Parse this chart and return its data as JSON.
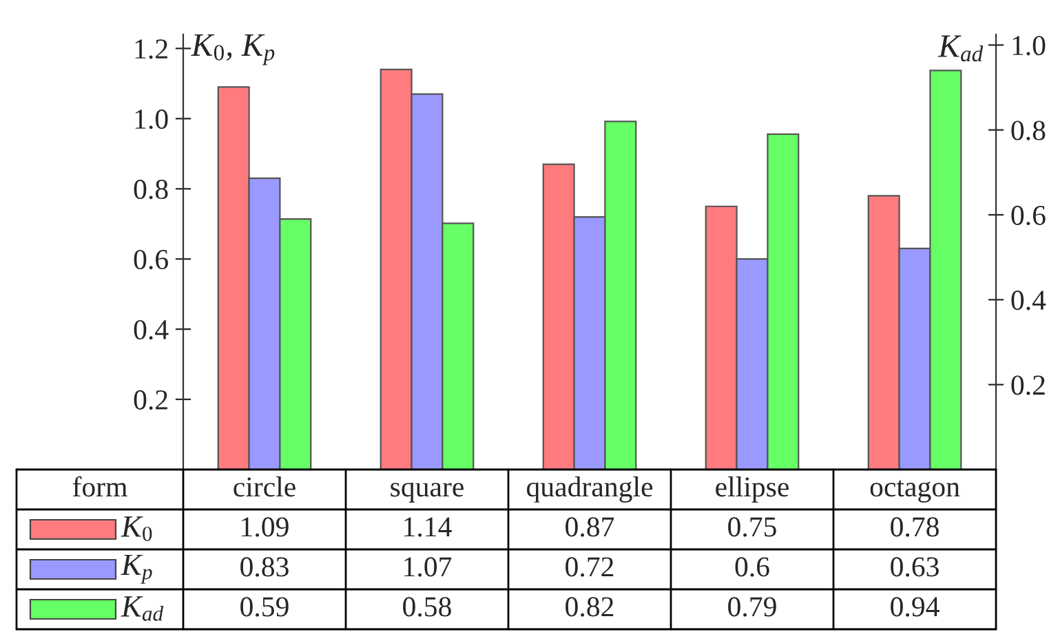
{
  "chart_data": {
    "type": "bar",
    "categories": [
      "circle",
      "square",
      "quadrangle",
      "ellipse",
      "octagon"
    ],
    "xlabel": "form",
    "ylabel": "K$_{0}$, K$_{p}$",
    "y2label": "K$_{ad}$",
    "series": [
      {
        "name": "K$_{0}$",
        "color": "#ff7b7e",
        "values": [
          1.09,
          1.14,
          0.87,
          0.75,
          0.78
        ]
      },
      {
        "name": "K$_{p}$",
        "color": "#9999ff",
        "values": [
          0.83,
          1.07,
          0.72,
          0.6,
          0.63
        ]
      },
      {
        "name": "K$_{ad}$",
        "color": "#66ff66",
        "values": [
          0.59,
          0.58,
          0.82,
          0.79,
          0.94
        ],
        "axis": "y2"
      }
    ],
    "ylim": [
      0,
      1.24
    ],
    "yticks": [
      0.2,
      0.4,
      0.6,
      0.8,
      {
        "value": 1,
        "label": "1.0"
      },
      1.2
    ],
    "y2lim": [
      0,
      1.025
    ],
    "y2ticks": [
      0.2,
      0.4,
      0.6,
      0.8,
      {
        "value": 1,
        "label": "1.0"
      }
    ],
    "legend": "bottom",
    "data_labels": true,
    "grid": false
  }
}
